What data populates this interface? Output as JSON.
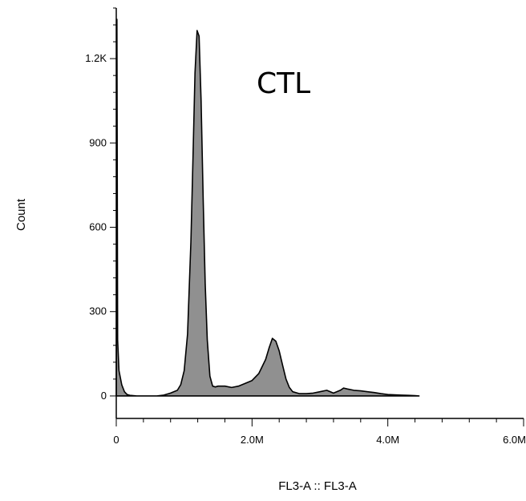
{
  "chart_data": {
    "type": "area",
    "title": "",
    "annotation": "CTL",
    "xlabel": "FL3-A :: FL3-A",
    "ylabel": "Count",
    "xlim": [
      0,
      6000000
    ],
    "ylim": [
      -80,
      1380
    ],
    "x_ticks": [
      {
        "value": 0,
        "label": "0"
      },
      {
        "value": 2000000,
        "label": "2.0M"
      },
      {
        "value": 4000000,
        "label": "4.0M"
      },
      {
        "value": 6000000,
        "label": "6.0M"
      }
    ],
    "y_ticks": [
      {
        "value": 0,
        "label": "0"
      },
      {
        "value": 300,
        "label": "300"
      },
      {
        "value": 600,
        "label": "600"
      },
      {
        "value": 900,
        "label": "900"
      },
      {
        "value": 1200,
        "label": "1.2K"
      }
    ],
    "fill_color": "#909090",
    "line_color": "#000000",
    "series": [
      {
        "x": [
          0,
          10000,
          20000,
          40000,
          80000,
          120000,
          160000,
          200000,
          300000,
          400000,
          500000,
          600000,
          700000,
          800000,
          900000,
          950000,
          1000000,
          1050000,
          1100000,
          1130000,
          1160000,
          1190000,
          1220000,
          1250000,
          1280000,
          1310000,
          1340000,
          1380000,
          1420000,
          1460000,
          1500000,
          1600000,
          1700000,
          1800000,
          1900000,
          2000000,
          2100000,
          2200000,
          2250000,
          2300000,
          2350000,
          2400000,
          2450000,
          2500000,
          2550000,
          2600000,
          2700000,
          2800000,
          2900000,
          3000000,
          3100000,
          3200000,
          3300000,
          3350000,
          3400000,
          3500000,
          3600000,
          3700000,
          3800000,
          3900000,
          4000000,
          4100000,
          4200000,
          4300000,
          4400000,
          4460000
        ],
        "y": [
          0,
          1340,
          200,
          90,
          40,
          15,
          5,
          2,
          0,
          0,
          0,
          0,
          3,
          10,
          20,
          40,
          90,
          220,
          550,
          850,
          1150,
          1300,
          1280,
          1050,
          700,
          400,
          200,
          70,
          35,
          32,
          35,
          35,
          30,
          35,
          45,
          55,
          80,
          130,
          170,
          205,
          195,
          160,
          110,
          60,
          30,
          15,
          8,
          8,
          10,
          15,
          20,
          10,
          20,
          28,
          25,
          20,
          18,
          15,
          12,
          8,
          5,
          4,
          3,
          2,
          1,
          0
        ]
      }
    ]
  }
}
